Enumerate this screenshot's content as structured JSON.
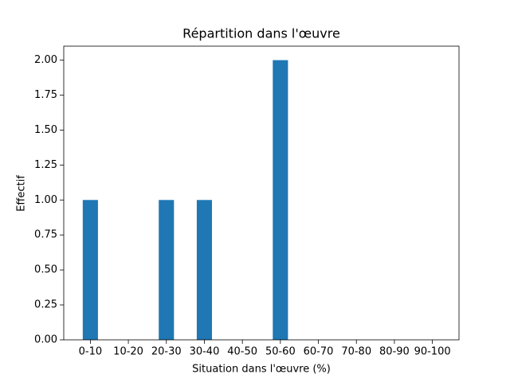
{
  "chart_data": {
    "type": "bar",
    "title": "Répartition dans l'œuvre",
    "xlabel": "Situation dans l'œuvre (%)",
    "ylabel": "Effectif",
    "categories": [
      "0-10",
      "10-20",
      "20-30",
      "30-40",
      "40-50",
      "50-60",
      "60-70",
      "70-80",
      "80-90",
      "90-100"
    ],
    "values": [
      1,
      0,
      1,
      1,
      0,
      2,
      0,
      0,
      0,
      0
    ],
    "color": "#1f77b4",
    "ylim": [
      0,
      2.1
    ],
    "yticks": [
      {
        "value": 0,
        "label": "0.00"
      },
      0.25,
      {
        "value": 0.5,
        "label": "0.50"
      },
      0.75,
      {
        "value": 1,
        "label": "1.00"
      },
      1.25,
      {
        "value": 1.5,
        "label": "1.50"
      },
      1.75,
      {
        "value": 2,
        "label": "2.00"
      }
    ],
    "grid": false
  }
}
